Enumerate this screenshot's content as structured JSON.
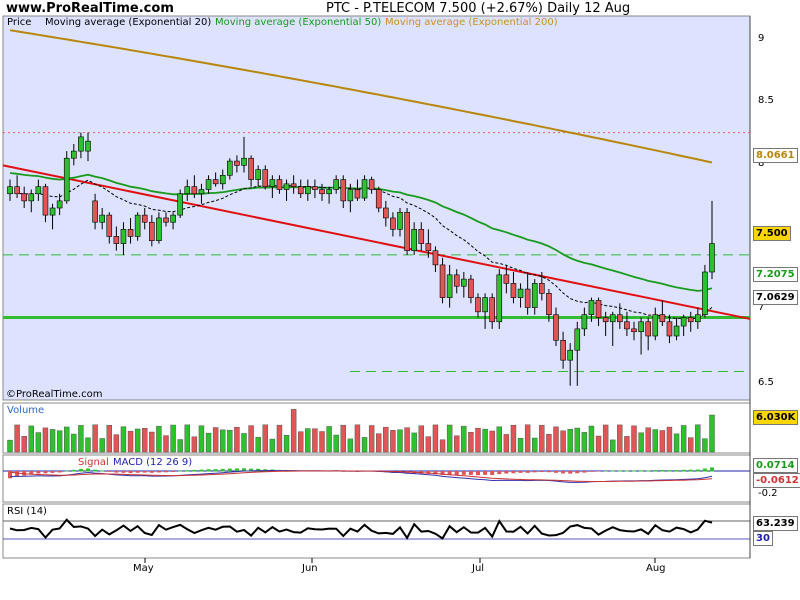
{
  "header": {
    "site": "www.ProRealTime.com",
    "title": "PTC - P.TELECOM    7.500 (+2.67%)    Daily  12 Aug"
  },
  "legend": {
    "price": "Price",
    "ema20": "Moving average (Exponential 20)",
    "ema50": "Moving average (Exponential 50)",
    "ema200": "Moving average (Exponential 200)"
  },
  "watermark": "©ProRealTime.com",
  "colors": {
    "background": "#dde3ff",
    "up_candle": "#2fbf2f",
    "down_candle": "#e05555",
    "ema20": "#000000",
    "ema50": "#1a9a1a",
    "ema200": "#b8860b",
    "trendline": "#e01010",
    "support": "#33bb33",
    "resistance": "#e06060",
    "macd_line": "#3333aa",
    "signal_line": "#cc3333",
    "rsi_line": "#000000"
  },
  "price_axis": {
    "ticks": [
      "9",
      "8.5",
      "8",
      "7.5",
      "7",
      "6.5"
    ]
  },
  "price_badges": {
    "ema200": "8.0661",
    "last": "7.500",
    "ema50": "7.2075",
    "ema20": "7.0629"
  },
  "volume": {
    "title": "Volume",
    "badge": "6.030K"
  },
  "macd": {
    "title_labels": [
      "Signal",
      "MACD (12 26 9)"
    ],
    "badge_macd": "0.0714",
    "badge_signal": "-0.0612",
    "tick": "-0.2"
  },
  "rsi": {
    "title": "RSI (14)",
    "badge": "63.239",
    "level": "30"
  },
  "months": [
    "May",
    "Jun",
    "Jul",
    "Aug"
  ],
  "chart_data": {
    "type": "candlestick",
    "title": "PTC - P.TELECOM",
    "period": "Daily",
    "last_close": 7.5,
    "change_pct": 2.67,
    "ylim": [
      6.4,
      9.1
    ],
    "grid": false,
    "x_month_ticks": [
      "May",
      "Jun",
      "Jul",
      "Aug"
    ],
    "ohlc": [
      [
        7.85,
        7.95,
        7.8,
        7.9
      ],
      [
        7.9,
        7.98,
        7.82,
        7.85
      ],
      [
        7.85,
        7.9,
        7.75,
        7.8
      ],
      [
        7.8,
        7.88,
        7.72,
        7.85
      ],
      [
        7.85,
        7.95,
        7.8,
        7.9
      ],
      [
        7.9,
        7.92,
        7.65,
        7.7
      ],
      [
        7.7,
        7.78,
        7.6,
        7.75
      ],
      [
        7.75,
        7.85,
        7.7,
        7.8
      ],
      [
        7.8,
        8.15,
        7.78,
        8.1
      ],
      [
        8.1,
        8.2,
        8.05,
        8.15
      ],
      [
        8.15,
        8.28,
        8.1,
        8.25
      ],
      [
        8.15,
        8.28,
        8.08,
        8.22
      ],
      [
        7.8,
        7.85,
        7.6,
        7.65
      ],
      [
        7.65,
        7.75,
        7.6,
        7.7
      ],
      [
        7.7,
        7.72,
        7.5,
        7.55
      ],
      [
        7.55,
        7.62,
        7.45,
        7.5
      ],
      [
        7.5,
        7.65,
        7.42,
        7.6
      ],
      [
        7.6,
        7.68,
        7.5,
        7.55
      ],
      [
        7.55,
        7.72,
        7.52,
        7.7
      ],
      [
        7.7,
        7.75,
        7.6,
        7.65
      ],
      [
        7.65,
        7.7,
        7.48,
        7.52
      ],
      [
        7.52,
        7.72,
        7.5,
        7.68
      ],
      [
        7.68,
        7.72,
        7.62,
        7.65
      ],
      [
        7.65,
        7.72,
        7.6,
        7.7
      ],
      [
        7.7,
        7.88,
        7.68,
        7.85
      ],
      [
        7.85,
        7.95,
        7.8,
        7.9
      ],
      [
        7.9,
        7.98,
        7.82,
        7.85
      ],
      [
        7.85,
        7.92,
        7.78,
        7.88
      ],
      [
        7.88,
        7.98,
        7.85,
        7.95
      ],
      [
        7.95,
        8.0,
        7.9,
        7.92
      ],
      [
        7.92,
        8.02,
        7.88,
        7.98
      ],
      [
        7.98,
        8.1,
        7.95,
        8.08
      ],
      [
        8.08,
        8.12,
        8.0,
        8.05
      ],
      [
        8.05,
        8.25,
        8.0,
        8.1
      ],
      [
        8.1,
        8.12,
        7.9,
        7.95
      ],
      [
        7.95,
        8.05,
        7.9,
        8.02
      ],
      [
        8.02,
        8.05,
        7.88,
        7.9
      ],
      [
        7.9,
        7.98,
        7.82,
        7.95
      ],
      [
        7.95,
        7.98,
        7.85,
        7.88
      ],
      [
        7.88,
        7.95,
        7.8,
        7.92
      ],
      [
        7.92,
        7.98,
        7.85,
        7.9
      ],
      [
        7.9,
        7.95,
        7.82,
        7.85
      ],
      [
        7.85,
        7.95,
        7.8,
        7.9
      ],
      [
        7.9,
        7.95,
        7.82,
        7.88
      ],
      [
        7.88,
        7.92,
        7.8,
        7.85
      ],
      [
        7.85,
        7.9,
        7.78,
        7.88
      ],
      [
        7.88,
        7.98,
        7.85,
        7.95
      ],
      [
        7.95,
        7.98,
        7.75,
        7.8
      ],
      [
        7.8,
        7.92,
        7.72,
        7.88
      ],
      [
        7.88,
        7.95,
        7.8,
        7.82
      ],
      [
        7.82,
        7.98,
        7.8,
        7.95
      ],
      [
        7.95,
        7.97,
        7.85,
        7.88
      ],
      [
        7.88,
        7.9,
        7.72,
        7.75
      ],
      [
        7.75,
        7.8,
        7.62,
        7.68
      ],
      [
        7.68,
        7.72,
        7.55,
        7.6
      ],
      [
        7.6,
        7.75,
        7.55,
        7.72
      ],
      [
        7.72,
        7.75,
        7.42,
        7.45
      ],
      [
        7.45,
        7.65,
        7.42,
        7.6
      ],
      [
        7.6,
        7.65,
        7.45,
        7.5
      ],
      [
        7.5,
        7.6,
        7.4,
        7.45
      ],
      [
        7.45,
        7.48,
        7.3,
        7.35
      ],
      [
        7.35,
        7.4,
        7.08,
        7.12
      ],
      [
        7.12,
        7.35,
        7.05,
        7.28
      ],
      [
        7.28,
        7.32,
        7.15,
        7.2
      ],
      [
        7.2,
        7.3,
        7.12,
        7.25
      ],
      [
        7.25,
        7.28,
        7.08,
        7.12
      ],
      [
        7.12,
        7.15,
        6.98,
        7.02
      ],
      [
        7.02,
        7.15,
        6.9,
        7.12
      ],
      [
        7.12,
        7.15,
        6.9,
        6.95
      ],
      [
        6.95,
        7.32,
        6.9,
        7.28
      ],
      [
        7.28,
        7.35,
        7.15,
        7.22
      ],
      [
        7.22,
        7.3,
        7.08,
        7.12
      ],
      [
        7.12,
        7.22,
        7.05,
        7.18
      ],
      [
        7.18,
        7.3,
        7.0,
        7.05
      ],
      [
        7.05,
        7.25,
        7.0,
        7.22
      ],
      [
        7.22,
        7.3,
        7.1,
        7.15
      ],
      [
        7.15,
        7.18,
        6.95,
        7.0
      ],
      [
        7.0,
        7.05,
        6.78,
        6.82
      ],
      [
        6.82,
        6.88,
        6.62,
        6.68
      ],
      [
        6.68,
        6.8,
        6.5,
        6.75
      ],
      [
        6.75,
        6.95,
        6.5,
        6.9
      ],
      [
        6.9,
        7.05,
        6.85,
        7.0
      ],
      [
        7.0,
        7.12,
        6.95,
        7.1
      ],
      [
        7.1,
        7.12,
        6.92,
        6.98
      ],
      [
        6.98,
        7.02,
        6.85,
        6.95
      ],
      [
        6.95,
        7.02,
        6.78,
        7.0
      ],
      [
        7.0,
        7.08,
        6.9,
        6.95
      ],
      [
        6.95,
        7.02,
        6.85,
        6.9
      ],
      [
        6.9,
        6.95,
        6.82,
        6.88
      ],
      [
        6.88,
        6.98,
        6.72,
        6.95
      ],
      [
        6.95,
        6.98,
        6.75,
        6.85
      ],
      [
        6.85,
        7.05,
        6.82,
        7.0
      ],
      [
        7.0,
        7.1,
        6.92,
        6.95
      ],
      [
        6.95,
        7.0,
        6.8,
        6.85
      ],
      [
        6.85,
        6.98,
        6.82,
        6.92
      ],
      [
        6.92,
        7.0,
        6.85,
        6.98
      ],
      [
        6.98,
        7.02,
        6.88,
        6.95
      ],
      [
        6.95,
        7.05,
        6.9,
        7.0
      ],
      [
        7.0,
        7.35,
        6.98,
        7.3
      ],
      [
        7.3,
        7.8,
        7.25,
        7.5
      ]
    ],
    "lines": {
      "ema200": {
        "name": "Moving average (Exponential 200)",
        "from": 9.0,
        "to": 8.07
      },
      "ema50": {
        "name": "Moving average (Exponential 50)",
        "last": 7.2075
      },
      "ema20": {
        "name": "Moving average (Exponential 20)",
        "last": 7.0629
      },
      "trendline": {
        "from": 8.05,
        "to": 6.97
      },
      "support": 6.98,
      "resistance_dotted": 8.28,
      "dashed_upper": 7.42,
      "dashed_lower": 6.6
    },
    "volume_last": "6.030K",
    "macd_last": 0.0714,
    "signal_last": -0.0612,
    "rsi_last": 63.239
  }
}
